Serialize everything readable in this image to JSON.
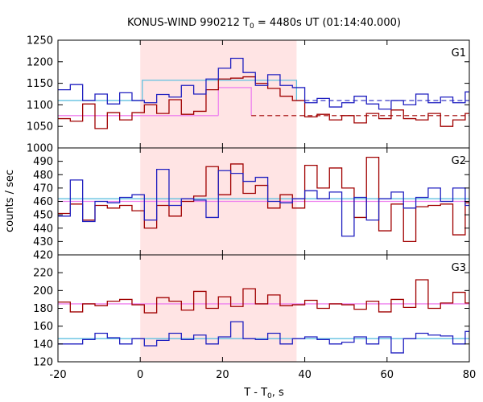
{
  "chart_data": {
    "type": "line",
    "title_main": "KONUS-WIND 990212 T",
    "title_sub": "0",
    "title_rest": " = 4480s UT (01:14:40.000)",
    "xlabel_main": "T - T",
    "xlabel_sub": "0",
    "xlabel_rest": ", s",
    "ylabel": "counts / sec",
    "xlim": [
      -20,
      80
    ],
    "x_ticks": [
      -20,
      0,
      20,
      40,
      60,
      80
    ],
    "shaded_interval": [
      0,
      38
    ],
    "colors": {
      "source_hist": "#a00000",
      "background_hist": "#2020c0",
      "source_bg": "#ee82ee",
      "background_bg": "#60c0e0",
      "shade": "#ffe4e4"
    },
    "panels": [
      {
        "name": "G1",
        "ylim": [
          1000,
          1250
        ],
        "y_ticks": [
          1000,
          1050,
          1100,
          1150,
          1200,
          1250
        ],
        "edges": [
          -20,
          -17,
          -14,
          -11,
          -8,
          -5,
          -2,
          1,
          4,
          7,
          10,
          13,
          16,
          19,
          22,
          25,
          28,
          31,
          34,
          37,
          40,
          43,
          46,
          49,
          52,
          55,
          58,
          61,
          64,
          67,
          70,
          73,
          76,
          79,
          80
        ],
        "series_blue": [
          1135,
          1147,
          1110,
          1125,
          1102,
          1128,
          1110,
          1105,
          1124,
          1118,
          1145,
          1125,
          1160,
          1185,
          1208,
          1175,
          1145,
          1170,
          1145,
          1140,
          1105,
          1115,
          1095,
          1105,
          1120,
          1102,
          1090,
          1110,
          1100,
          1125,
          1105,
          1118,
          1105,
          1130,
          1105
        ],
        "series_red": [
          1068,
          1062,
          1102,
          1045,
          1082,
          1065,
          1082,
          1100,
          1080,
          1112,
          1078,
          1085,
          1135,
          1160,
          1162,
          1165,
          1150,
          1138,
          1120,
          1110,
          1072,
          1078,
          1065,
          1075,
          1058,
          1080,
          1068,
          1088,
          1068,
          1065,
          1080,
          1050,
          1065,
          1080,
          1065
        ],
        "bg_red": {
          "x0": -20,
          "x1": 80,
          "y": 1075,
          "inner_x0": 19,
          "inner_x1": 27,
          "inner_y": 1140
        },
        "bg_blue": {
          "x0": -20,
          "x1": 80,
          "y": 1110,
          "inner_x0": 0.5,
          "inner_x1": 38,
          "inner_y": 1157
        }
      },
      {
        "name": "G2",
        "ylim": [
          420,
          500
        ],
        "y_ticks": [
          420,
          430,
          440,
          450,
          460,
          470,
          480,
          490
        ],
        "edges": [
          -20,
          -17,
          -14,
          -11,
          -8,
          -5,
          -2,
          1,
          4,
          7,
          10,
          13,
          16,
          19,
          22,
          25,
          28,
          31,
          34,
          37,
          40,
          43,
          46,
          49,
          52,
          55,
          58,
          61,
          64,
          67,
          70,
          73,
          76,
          79,
          80
        ],
        "series_blue": [
          449,
          476,
          445,
          460,
          459,
          463,
          465,
          446,
          484,
          457,
          462,
          461,
          448,
          483,
          481,
          475,
          478,
          460,
          459,
          462,
          468,
          462,
          467,
          434,
          463,
          446,
          462,
          467,
          455,
          463,
          470,
          460,
          470,
          457,
          460
        ],
        "series_red": [
          451,
          458,
          446,
          457,
          455,
          457,
          453,
          440,
          457,
          449,
          460,
          464,
          486,
          465,
          488,
          466,
          472,
          455,
          465,
          455,
          487,
          470,
          485,
          470,
          448,
          493,
          438,
          458,
          430,
          456,
          457,
          458,
          435,
          459,
          455
        ],
        "bg_red": {
          "x0": -20,
          "x1": 80,
          "y": 460
        },
        "bg_blue": {
          "x0": -20,
          "x1": 80,
          "y": 462
        }
      },
      {
        "name": "G3",
        "ylim": [
          120,
          240
        ],
        "y_ticks": [
          120,
          140,
          160,
          180,
          200,
          220
        ],
        "edges": [
          -20,
          -17,
          -14,
          -11,
          -8,
          -5,
          -2,
          1,
          4,
          7,
          10,
          13,
          16,
          19,
          22,
          25,
          28,
          31,
          34,
          37,
          40,
          43,
          46,
          49,
          52,
          55,
          58,
          61,
          64,
          67,
          70,
          73,
          76,
          79,
          80
        ],
        "series_blue": [
          140,
          140,
          145,
          152,
          147,
          140,
          146,
          138,
          144,
          152,
          145,
          150,
          140,
          148,
          165,
          146,
          145,
          152,
          140,
          146,
          148,
          145,
          140,
          142,
          148,
          140,
          148,
          130,
          146,
          152,
          150,
          149,
          140,
          154,
          146
        ],
        "series_red": [
          187,
          176,
          185,
          183,
          188,
          190,
          184,
          175,
          192,
          188,
          178,
          199,
          180,
          193,
          182,
          202,
          185,
          195,
          183,
          184,
          189,
          180,
          185,
          184,
          179,
          188,
          176,
          190,
          181,
          212,
          180,
          186,
          198,
          186,
          186
        ],
        "bg_red": {
          "x0": -20,
          "x1": 80,
          "y": 185
        },
        "bg_blue": {
          "x0": -20,
          "x1": 80,
          "y": 146
        }
      }
    ]
  }
}
